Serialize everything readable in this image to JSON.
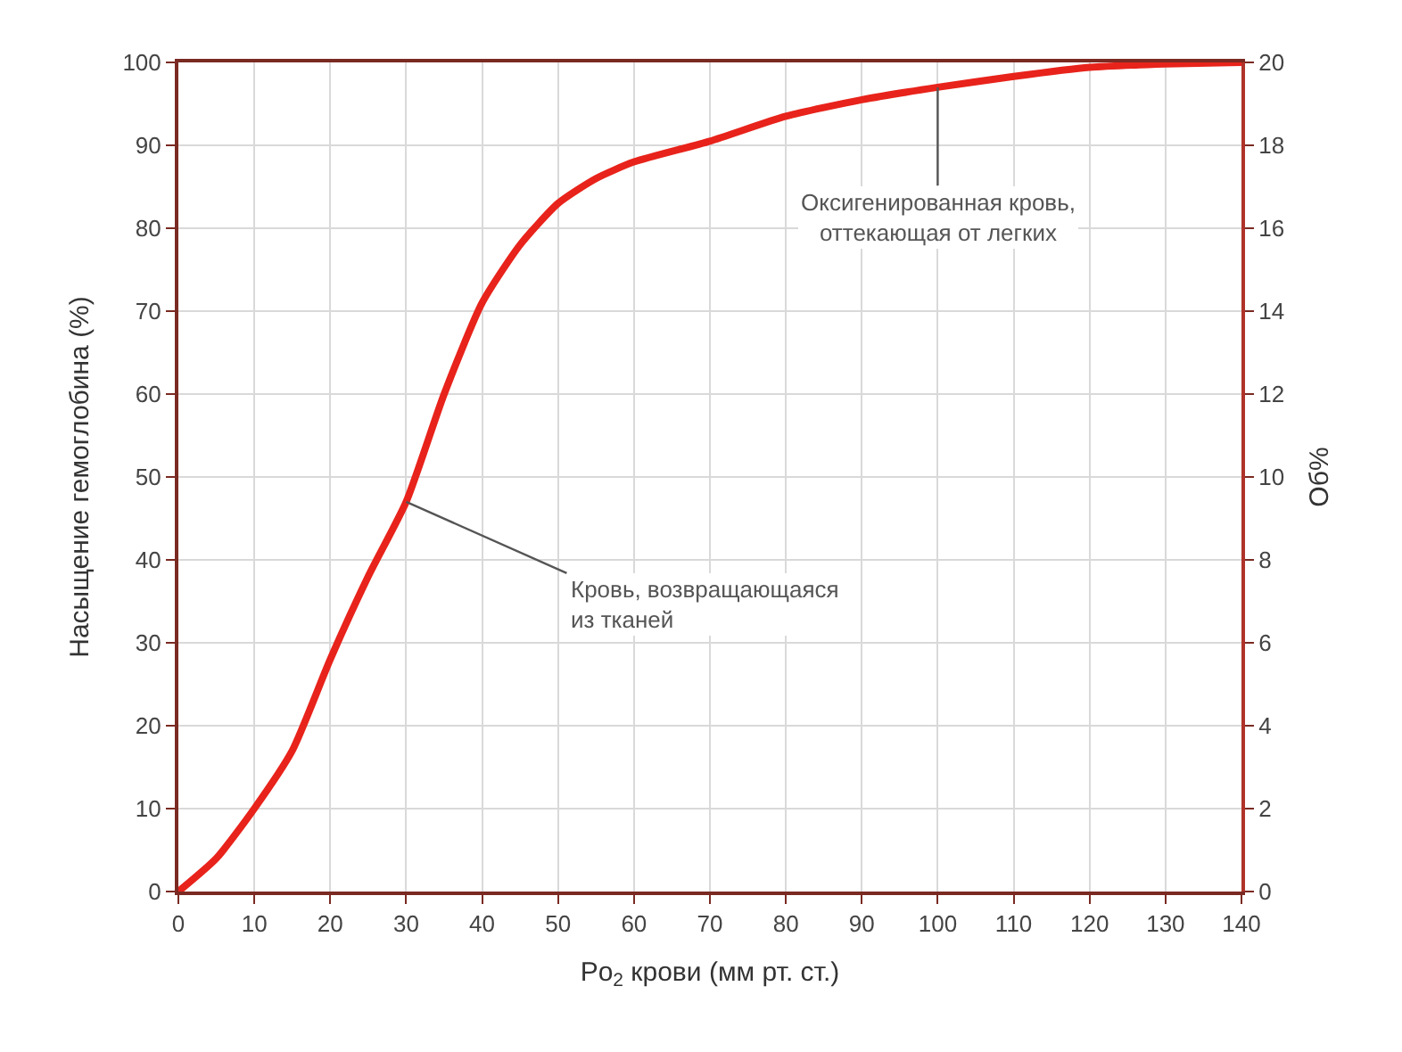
{
  "chart_data": {
    "type": "line",
    "xlabel": "Po$_{2}$ крови (мм рт. ст.)",
    "ylabel": "Насыщение гемоглобина (%)",
    "y2label": "Об%",
    "x": [
      0,
      5,
      10,
      15,
      20,
      25,
      30,
      35,
      40,
      45,
      50,
      55,
      60,
      70,
      80,
      90,
      100,
      110,
      120,
      130,
      140
    ],
    "series": [
      {
        "color": "#e8231b",
        "values": [
          0,
          4,
          10,
          17,
          28,
          38,
          47,
          60,
          71,
          78,
          83,
          86,
          88,
          90.5,
          93.5,
          95.5,
          97,
          98.3,
          99.4,
          99.8,
          100
        ]
      }
    ],
    "xlim": [
      0,
      140
    ],
    "xticks": [
      0,
      10,
      20,
      30,
      40,
      50,
      60,
      70,
      80,
      90,
      100,
      110,
      120,
      130,
      140
    ],
    "ylim": [
      0,
      100
    ],
    "yticks": [
      0,
      10,
      20,
      30,
      40,
      50,
      60,
      70,
      80,
      90,
      100
    ],
    "y2lim": [
      0,
      20
    ],
    "y2ticks": [
      0,
      2,
      4,
      6,
      8,
      10,
      12,
      14,
      16,
      18,
      20
    ],
    "grid": true,
    "marker": "none",
    "line_style": "solid",
    "annotations": [
      {
        "text": "Кровь, возвращающаяся\nиз тканей",
        "x": 30,
        "y": 47
      },
      {
        "text": "Оксигенированная кровь,\nоттекающая от легких",
        "x": 100,
        "y": 97
      }
    ]
  }
}
